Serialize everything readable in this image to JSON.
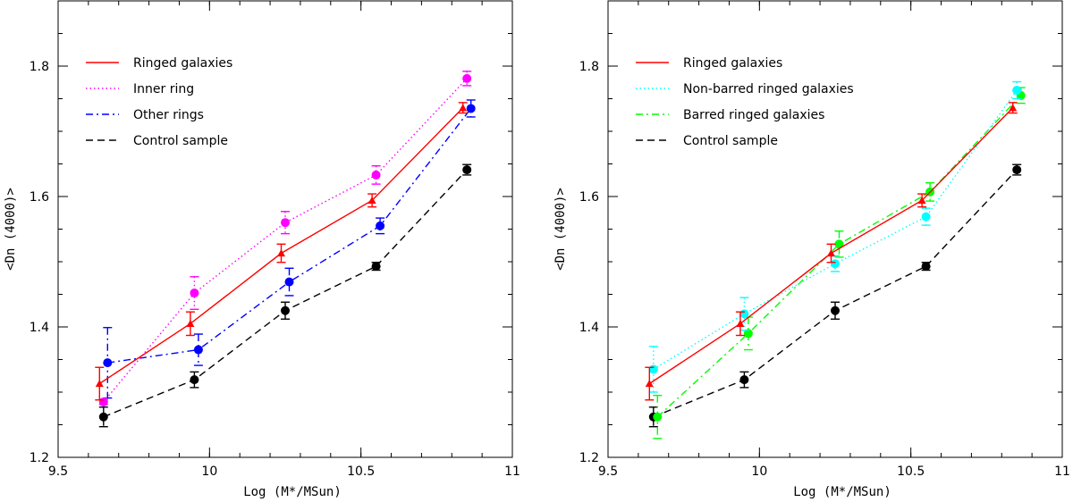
{
  "chart_data": [
    {
      "type": "line",
      "title": "",
      "xlabel": "Log (M*/MSun)",
      "ylabel": "<Dn (4000)>",
      "xlim": [
        9.5,
        11
      ],
      "ylim": [
        1.2,
        1.9
      ],
      "x_ticks": [
        9.5,
        10,
        10.5,
        11
      ],
      "x_tick_labels": [
        "9.5",
        "10",
        "10.5",
        "11"
      ],
      "y_ticks": [
        1.2,
        1.4,
        1.6,
        1.8
      ],
      "y_tick_labels": [
        "1.2",
        "1.4",
        "1.6",
        "1.8"
      ],
      "legend_position": "top-left",
      "grid": false,
      "series": [
        {
          "name": "Ringed galaxies",
          "color": "#ff0000",
          "dash": "solid",
          "marker": "triangle",
          "x": [
            9.65,
            9.95,
            10.25,
            10.55,
            10.85
          ],
          "y": [
            1.313,
            1.405,
            1.513,
            1.594,
            1.736
          ],
          "err": [
            0.025,
            0.018,
            0.014,
            0.01,
            0.008
          ]
        },
        {
          "name": "Inner ring",
          "color": "#ff00ff",
          "dash": "dotted",
          "marker": "circle",
          "x": [
            9.65,
            9.95,
            10.25,
            10.55,
            10.85
          ],
          "y": [
            1.285,
            1.452,
            1.56,
            1.633,
            1.781
          ],
          "err": [
            0.004,
            0.025,
            0.017,
            0.014,
            0.011
          ]
        },
        {
          "name": "Other rings",
          "color": "#0000ff",
          "dash": "dashdot",
          "marker": "circle",
          "x": [
            9.65,
            9.95,
            10.25,
            10.55,
            10.85
          ],
          "y": [
            1.345,
            1.365,
            1.469,
            1.555,
            1.735
          ],
          "err": [
            0.054,
            0.024,
            0.021,
            0.012,
            0.013
          ]
        },
        {
          "name": "Control sample",
          "color": "#000000",
          "dash": "dashed",
          "marker": "circle",
          "x": [
            9.65,
            9.95,
            10.25,
            10.55,
            10.85
          ],
          "y": [
            1.262,
            1.319,
            1.425,
            1.493,
            1.641
          ],
          "err": [
            0.015,
            0.012,
            0.013,
            0.006,
            0.008
          ]
        }
      ]
    },
    {
      "type": "line",
      "title": "",
      "xlabel": "Log (M*/MSun)",
      "ylabel": "<Dn (4000)>",
      "xlim": [
        9.5,
        11
      ],
      "ylim": [
        1.2,
        1.9
      ],
      "x_ticks": [
        9.5,
        10,
        10.5,
        11
      ],
      "x_tick_labels": [
        "9.5",
        "10",
        "10.5",
        "11"
      ],
      "y_ticks": [
        1.2,
        1.4,
        1.6,
        1.8
      ],
      "y_tick_labels": [
        "1.2",
        "1.4",
        "1.6",
        "1.8"
      ],
      "legend_position": "top-left",
      "grid": false,
      "series": [
        {
          "name": "Ringed galaxies",
          "color": "#ff0000",
          "dash": "solid",
          "marker": "triangle",
          "x": [
            9.65,
            9.95,
            10.25,
            10.55,
            10.85
          ],
          "y": [
            1.313,
            1.405,
            1.513,
            1.594,
            1.736
          ],
          "err": [
            0.025,
            0.018,
            0.014,
            0.01,
            0.008
          ]
        },
        {
          "name": "Non-barred ringed galaxies",
          "color": "#00ffff",
          "dash": "dotted",
          "marker": "circle",
          "x": [
            9.65,
            9.95,
            10.25,
            10.55,
            10.85
          ],
          "y": [
            1.335,
            1.42,
            1.497,
            1.569,
            1.763
          ],
          "err": [
            0.035,
            0.025,
            0.012,
            0.013,
            0.013
          ]
        },
        {
          "name": "Barred ringed galaxies",
          "color": "#00ff00",
          "dash": "dashdot",
          "marker": "circle",
          "x": [
            9.65,
            9.95,
            10.25,
            10.55,
            10.85
          ],
          "y": [
            1.262,
            1.39,
            1.527,
            1.607,
            1.755
          ],
          "err": [
            0.033,
            0.025,
            0.02,
            0.014,
            0.012
          ]
        },
        {
          "name": "Control sample",
          "color": "#000000",
          "dash": "dashed",
          "marker": "circle",
          "x": [
            9.65,
            9.95,
            10.25,
            10.55,
            10.85
          ],
          "y": [
            1.262,
            1.319,
            1.425,
            1.493,
            1.641
          ],
          "err": [
            0.015,
            0.012,
            0.013,
            0.006,
            0.008
          ]
        }
      ]
    }
  ]
}
